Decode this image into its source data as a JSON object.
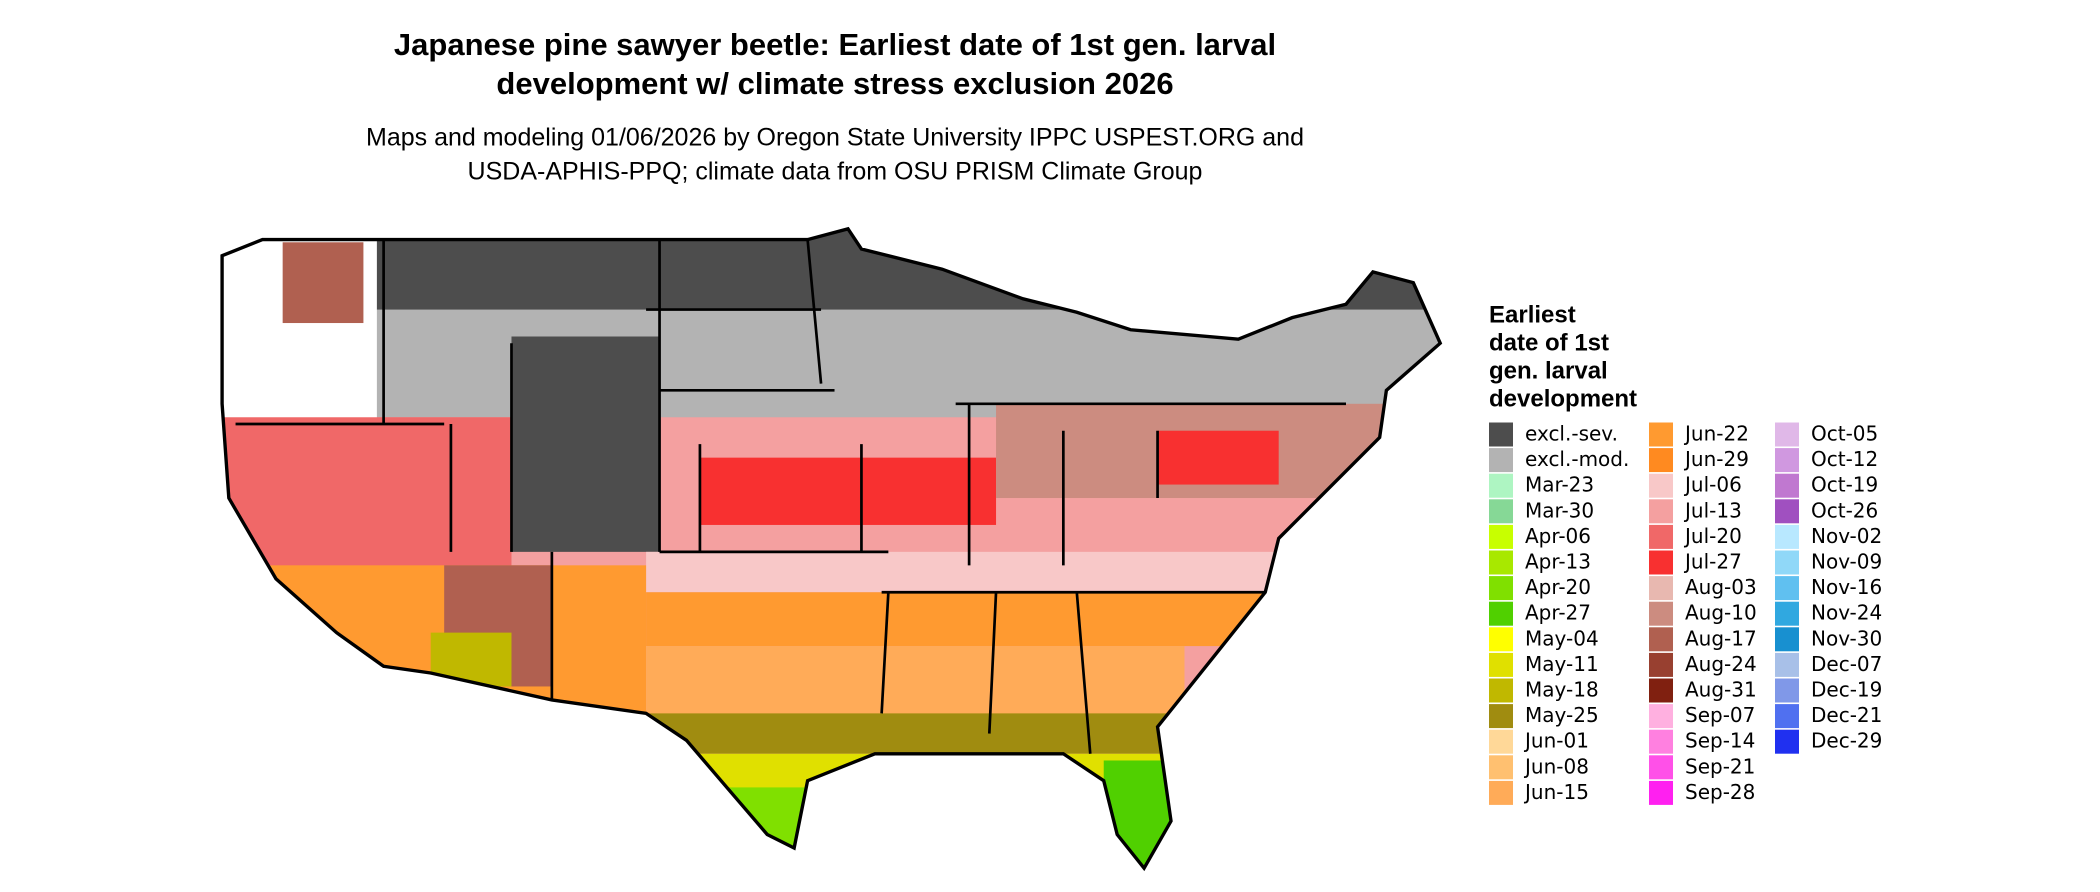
{
  "title": [
    "Japanese pine sawyer beetle: Earliest date of 1st gen. larval",
    "development w/ climate stress exclusion 2026"
  ],
  "subtitle": [
    "Maps and modeling 01/06/2026 by Oregon State University IPPC USPEST.ORG and",
    "USDA-APHIS-PPQ; climate data from OSU PRISM Climate Group"
  ],
  "legend": {
    "title": [
      "Earliest",
      "date of 1st",
      "gen. larval",
      "development"
    ],
    "columns": [
      [
        {
          "label": "excl.-sev.",
          "color": "#4d4d4d"
        },
        {
          "label": "excl.-mod.",
          "color": "#b3b3b3"
        },
        {
          "label": "Mar-23",
          "color": "#aef5c2"
        },
        {
          "label": "Mar-30",
          "color": "#86d896"
        },
        {
          "label": "Apr-06",
          "color": "#c8ff00"
        },
        {
          "label": "Apr-13",
          "color": "#a8e800"
        },
        {
          "label": "Apr-20",
          "color": "#80e000"
        },
        {
          "label": "Apr-27",
          "color": "#50d000"
        },
        {
          "label": "May-04",
          "color": "#ffff00"
        },
        {
          "label": "May-11",
          "color": "#e0e000"
        },
        {
          "label": "May-18",
          "color": "#c0b800"
        },
        {
          "label": "May-25",
          "color": "#a08c10"
        },
        {
          "label": "Jun-01",
          "color": "#ffd898"
        },
        {
          "label": "Jun-08",
          "color": "#ffc070"
        },
        {
          "label": "Jun-15",
          "color": "#ffab58"
        }
      ],
      [
        {
          "label": "Jun-22",
          "color": "#ff9a30"
        },
        {
          "label": "Jun-29",
          "color": "#ff8a20"
        },
        {
          "label": "Jul-06",
          "color": "#f8c8c8"
        },
        {
          "label": "Jul-13",
          "color": "#f4a0a0"
        },
        {
          "label": "Jul-20",
          "color": "#f06868"
        },
        {
          "label": "Jul-27",
          "color": "#f83030"
        },
        {
          "label": "Aug-03",
          "color": "#e8b8b0"
        },
        {
          "label": "Aug-10",
          "color": "#cc8c80"
        },
        {
          "label": "Aug-17",
          "color": "#b06050"
        },
        {
          "label": "Aug-24",
          "color": "#984030"
        },
        {
          "label": "Aug-31",
          "color": "#802010"
        },
        {
          "label": "Sep-07",
          "color": "#ffb0e0"
        },
        {
          "label": "Sep-14",
          "color": "#ff80e0"
        },
        {
          "label": "Sep-21",
          "color": "#ff50e8"
        },
        {
          "label": "Sep-28",
          "color": "#ff20f0"
        }
      ],
      [
        {
          "label": "Oct-05",
          "color": "#e0b8e8"
        },
        {
          "label": "Oct-12",
          "color": "#d098e0"
        },
        {
          "label": "Oct-19",
          "color": "#c078d0"
        },
        {
          "label": "Oct-26",
          "color": "#a050c0"
        },
        {
          "label": "Nov-02",
          "color": "#b8e8ff"
        },
        {
          "label": "Nov-09",
          "color": "#90d8f8"
        },
        {
          "label": "Nov-16",
          "color": "#60c0f0"
        },
        {
          "label": "Nov-24",
          "color": "#30a8e0"
        },
        {
          "label": "Nov-30",
          "color": "#1890d0"
        },
        {
          "label": "Dec-07",
          "color": "#a8c0e8"
        },
        {
          "label": "Dec-19",
          "color": "#8098e8"
        },
        {
          "label": "Dec-21",
          "color": "#5070f0"
        },
        {
          "label": "Dec-29",
          "color": "#2030f0"
        }
      ]
    ]
  }
}
